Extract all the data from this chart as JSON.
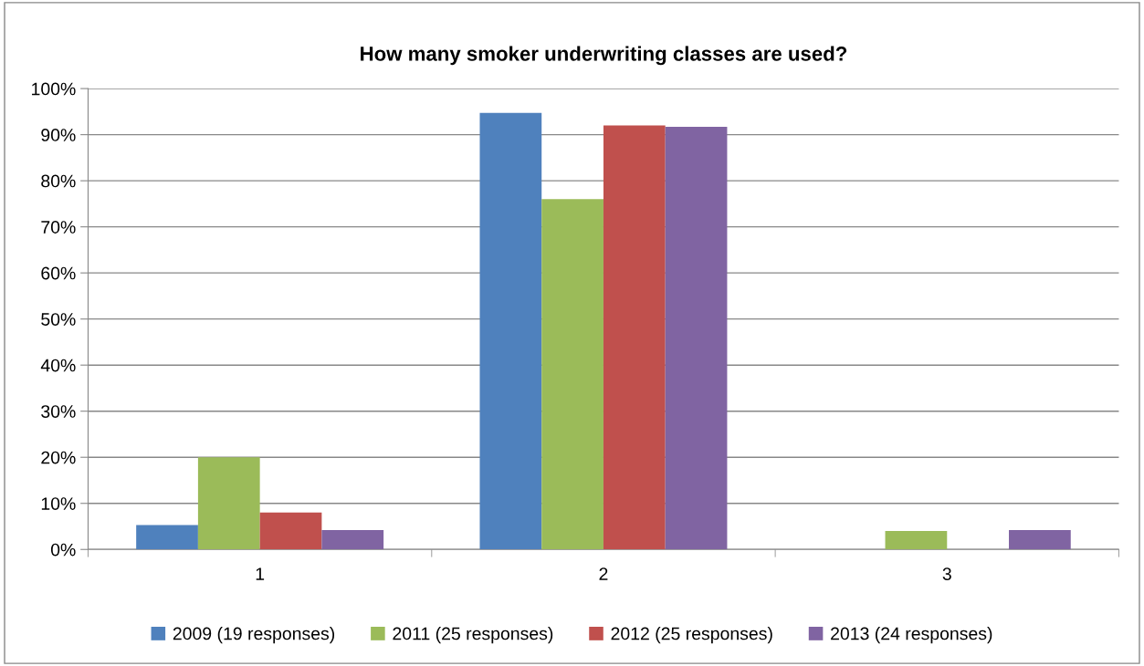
{
  "chart_data": {
    "type": "bar",
    "title": "How many smoker underwriting classes are used?",
    "categories": [
      "1",
      "2",
      "3"
    ],
    "series": [
      {
        "name": "2009 (19 responses)",
        "color": "#4f81bd",
        "values": [
          5.3,
          94.7,
          0
        ]
      },
      {
        "name": "2011 (25 responses)",
        "color": "#9bbb59",
        "values": [
          20,
          76,
          4
        ]
      },
      {
        "name": "2012 (25 responses)",
        "color": "#c0504d",
        "values": [
          8,
          92,
          0
        ]
      },
      {
        "name": "2013 (24 responses)",
        "color": "#8064a2",
        "values": [
          4.2,
          91.7,
          4.2
        ]
      }
    ],
    "ylim": [
      0,
      100
    ],
    "yticks": [
      {
        "value": 0,
        "label": "0%"
      },
      {
        "value": 10,
        "label": "10%"
      },
      {
        "value": 20,
        "label": "20%"
      },
      {
        "value": 30,
        "label": "30%"
      },
      {
        "value": 40,
        "label": "40%"
      },
      {
        "value": 50,
        "label": "50%"
      },
      {
        "value": 60,
        "label": "60%"
      },
      {
        "value": 70,
        "label": "70%"
      },
      {
        "value": 80,
        "label": "80%"
      },
      {
        "value": 90,
        "label": "90%"
      },
      {
        "value": 100,
        "label": "100%"
      }
    ],
    "grid": "y",
    "legend": "bottom"
  }
}
